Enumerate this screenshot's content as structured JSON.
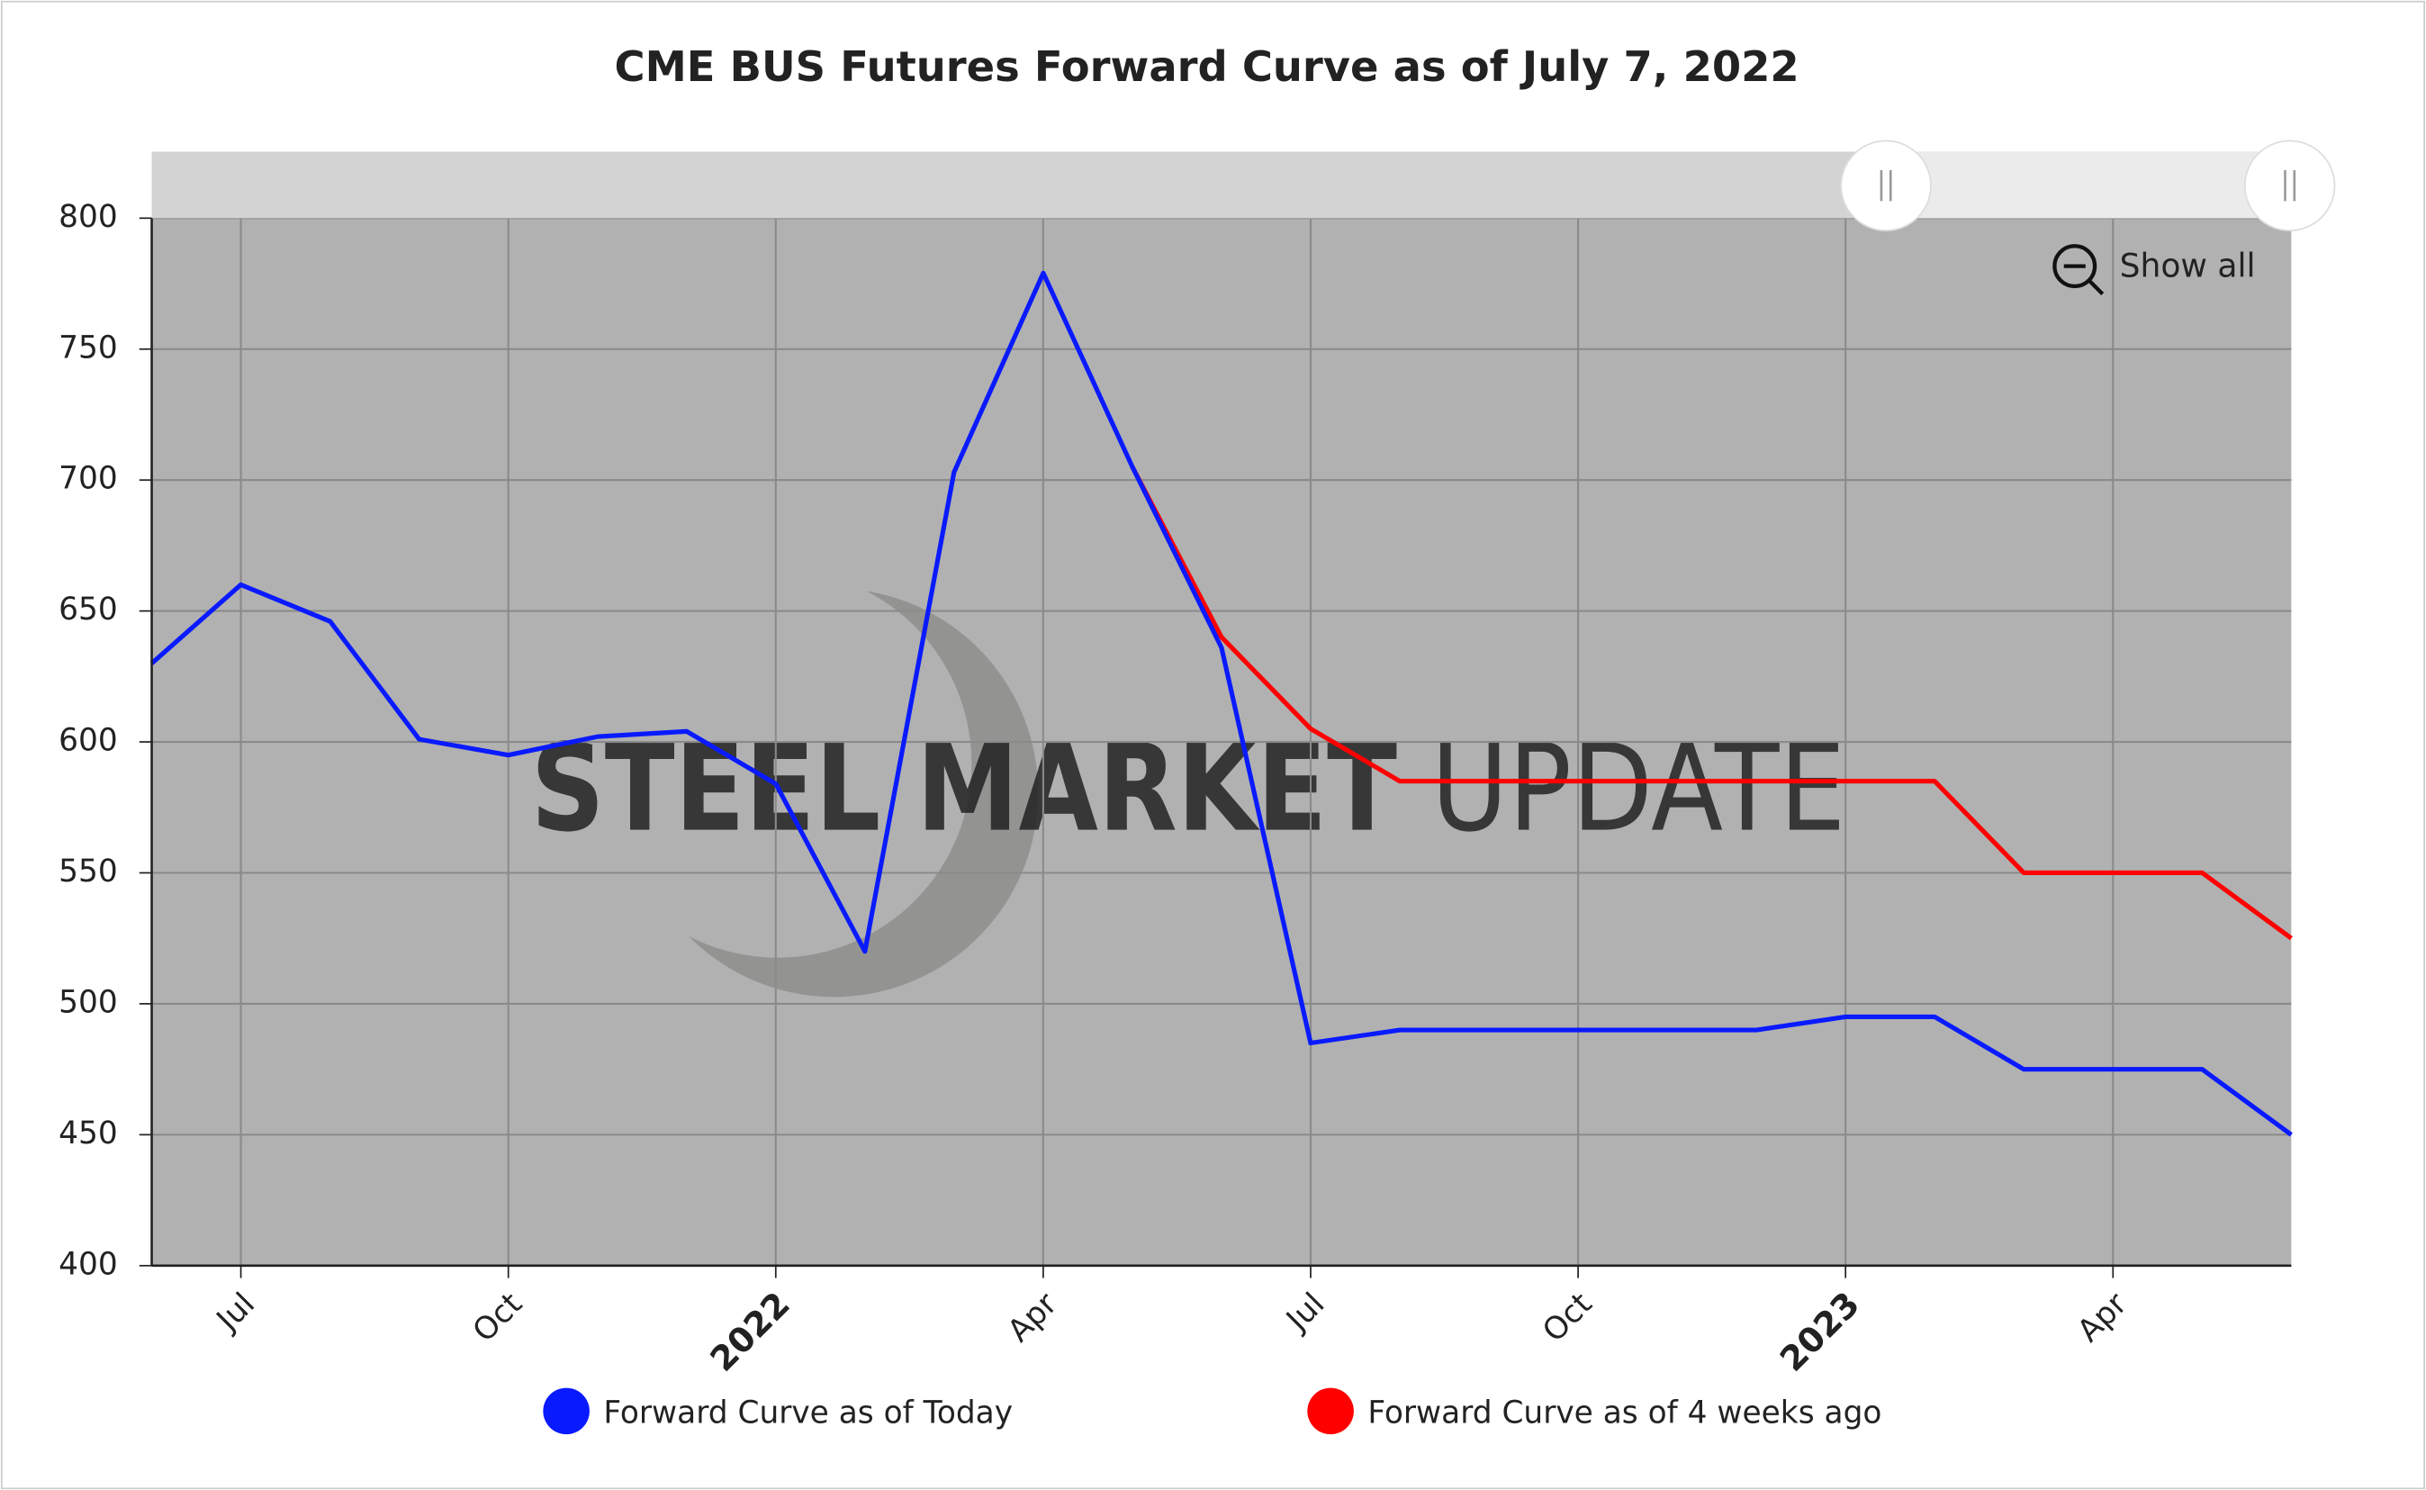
{
  "chart_data": {
    "type": "line",
    "title": "CME BUS Futures Forward Curve as of July 7, 2022",
    "x": [
      "2021-06",
      "2021-07",
      "2021-08",
      "2021-09",
      "2021-10",
      "2021-11",
      "2021-12",
      "2022-01",
      "2022-02",
      "2022-03",
      "2022-04",
      "2022-05",
      "2022-06",
      "2022-07",
      "2022-08",
      "2022-09",
      "2022-10",
      "2022-11",
      "2022-12",
      "2023-01",
      "2023-02",
      "2023-03",
      "2023-04",
      "2023-05",
      "2023-06"
    ],
    "series": [
      {
        "name": "Forward Curve as of Today",
        "color": "#0a1aff",
        "values": [
          630,
          660,
          646,
          601,
          595,
          602,
          604,
          584,
          520,
          703,
          779,
          705,
          636,
          485,
          490,
          490,
          490,
          490,
          490,
          495,
          495,
          475,
          475,
          475,
          450
        ]
      },
      {
        "name": "Forward Curve as of 4 weeks ago",
        "color": "#ff0000",
        "values": [
          null,
          null,
          null,
          null,
          null,
          null,
          null,
          null,
          null,
          null,
          null,
          705,
          640,
          605,
          585,
          585,
          585,
          585,
          585,
          585,
          585,
          550,
          550,
          550,
          525
        ]
      }
    ],
    "xlim": [
      "2021-06",
      "2023-06"
    ],
    "xticks": [
      {
        "value": "2021-07",
        "label": "Jul"
      },
      {
        "value": "2021-10",
        "label": "Oct"
      },
      {
        "value": "2022-01",
        "label": "2022"
      },
      {
        "value": "2022-04",
        "label": "Apr"
      },
      {
        "value": "2022-07",
        "label": "Jul"
      },
      {
        "value": "2022-10",
        "label": "Oct"
      },
      {
        "value": "2023-01",
        "label": "2023"
      },
      {
        "value": "2023-04",
        "label": "Apr"
      }
    ],
    "ylim": [
      400,
      800
    ],
    "yticks": [
      400,
      450,
      500,
      550,
      600,
      650,
      700,
      750,
      800
    ],
    "grid": true,
    "legend": "bottom",
    "watermark": [
      "STEEL MARKET",
      "UPDATE"
    ]
  },
  "controls": {
    "show_all": "Show all"
  }
}
